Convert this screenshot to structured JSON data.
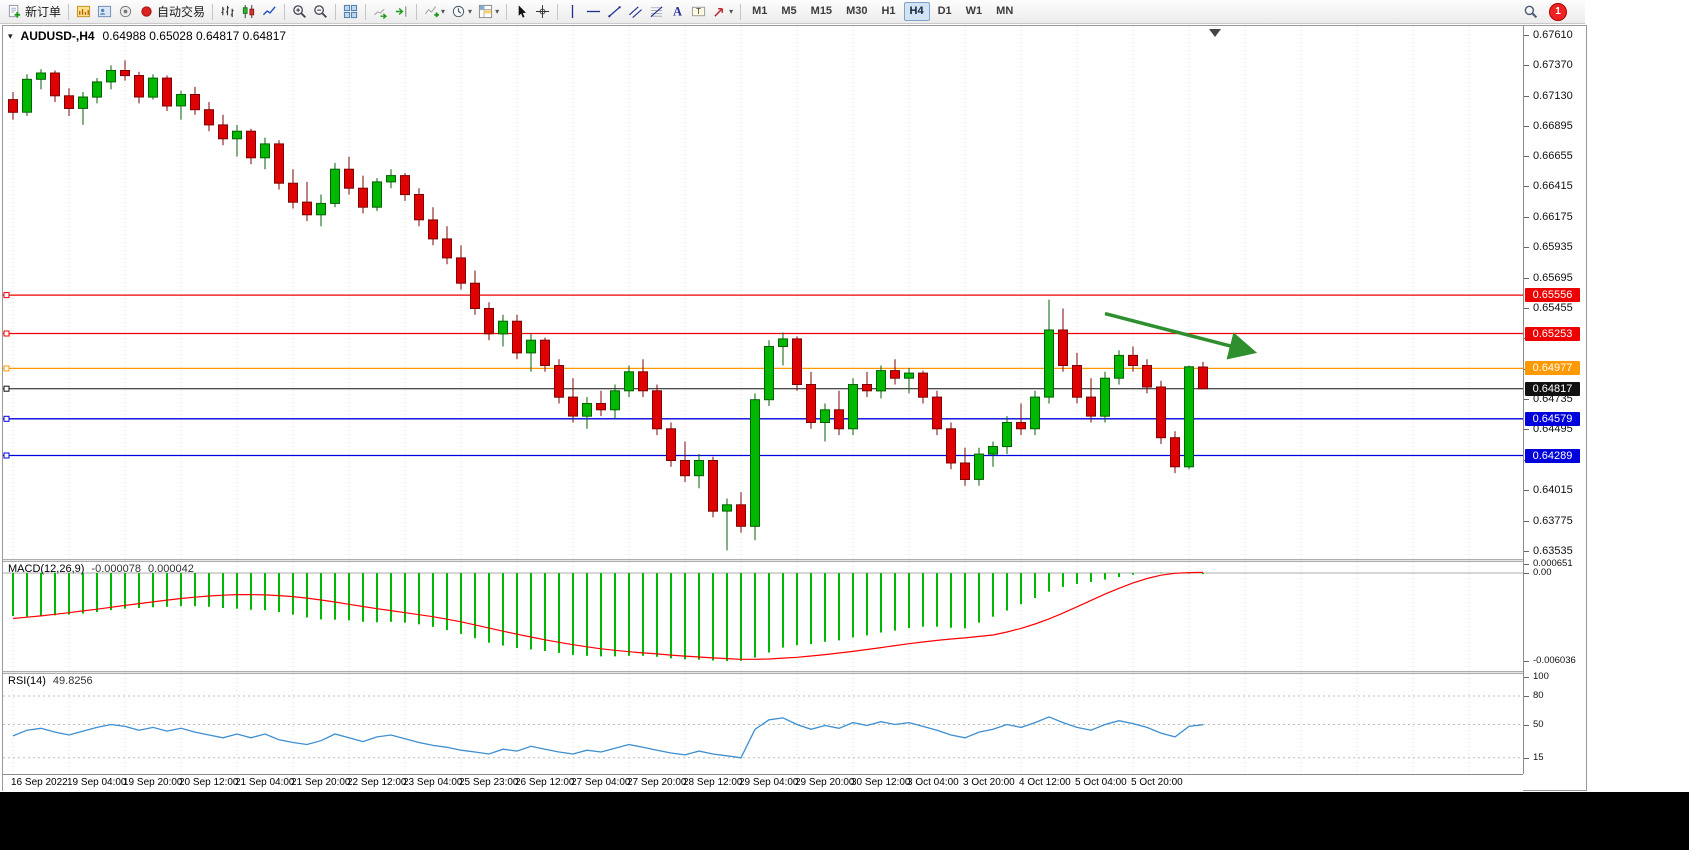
{
  "toolbar": {
    "notification_count": "1",
    "groups": [
      {
        "name": "orders",
        "items": [
          {
            "name": "new-order",
            "icon": "doc-new",
            "label": "新订单"
          }
        ]
      },
      {
        "name": "windows",
        "items": [
          {
            "name": "chart-windows",
            "icon": "chart-window"
          },
          {
            "name": "profiles",
            "icon": "profiles"
          },
          {
            "name": "news",
            "icon": "news"
          },
          {
            "name": "autotrading",
            "icon": "autotrading",
            "label": "自动交易"
          }
        ]
      },
      {
        "name": "chart-type",
        "items": [
          {
            "name": "bar-chart",
            "icon": "bars"
          },
          {
            "name": "candlestick-chart",
            "icon": "candles"
          },
          {
            "name": "line-chart",
            "icon": "linechart"
          }
        ]
      },
      {
        "name": "zoom",
        "items": [
          {
            "name": "zoom-in",
            "icon": "zoom-in"
          },
          {
            "name": "zoom-out",
            "icon": "zoom-out"
          }
        ]
      },
      {
        "name": "arrange",
        "items": [
          {
            "name": "tile-windows",
            "icon": "tile"
          }
        ]
      },
      {
        "name": "scroll",
        "items": [
          {
            "name": "auto-scroll",
            "icon": "auto-scroll"
          },
          {
            "name": "chart-shift",
            "icon": "chart-shift"
          }
        ]
      },
      {
        "name": "tools",
        "items": [
          {
            "name": "indicators",
            "icon": "indicator",
            "dropdown": true
          },
          {
            "name": "periods",
            "icon": "clock",
            "dropdown": true
          },
          {
            "name": "templates",
            "icon": "template",
            "dropdown": true
          }
        ]
      },
      {
        "name": "pointer",
        "items": [
          {
            "name": "cursor",
            "icon": "cursor"
          },
          {
            "name": "crosshair",
            "icon": "crosshair"
          }
        ]
      },
      {
        "name": "drawing",
        "items": [
          {
            "name": "vertical-line",
            "icon": "vline"
          },
          {
            "name": "horizontal-line",
            "icon": "hline"
          },
          {
            "name": "trend-line",
            "icon": "tline"
          },
          {
            "name": "equidistant-channel",
            "icon": "channel"
          },
          {
            "name": "fibonacci",
            "icon": "fibo"
          },
          {
            "name": "text",
            "icon": "text"
          },
          {
            "name": "text-label",
            "icon": "label"
          },
          {
            "name": "arrows",
            "icon": "arrowmark",
            "dropdown": true
          }
        ]
      }
    ],
    "timeframes": [
      "M1",
      "M5",
      "M15",
      "M30",
      "H1",
      "H4",
      "D1",
      "W1",
      "MN"
    ],
    "active_timeframe": "H4"
  },
  "chart_data": {
    "type": "candlestick",
    "symbol_period": "AUDUSD-,H4",
    "ohlc_display": "0.64988 0.65028 0.64817 0.64817",
    "open": "0.64988",
    "high": "0.65028",
    "low": "0.64817",
    "close": "0.64817",
    "price_max": 0.6761,
    "price_min": 0.63535,
    "price_axis_ticks": [
      "0.67610",
      "0.67370",
      "0.67130",
      "0.66895",
      "0.66655",
      "0.66415",
      "0.66175",
      "0.65935",
      "0.65695",
      "0.65455",
      "0.65215",
      "0.64975",
      "0.64735",
      "0.64495",
      "0.64255",
      "0.64015",
      "0.63775",
      "0.63535"
    ],
    "hlines": [
      {
        "price": 0.65556,
        "label": "0.65556",
        "color": "#ee0000",
        "type": "resistance"
      },
      {
        "price": 0.65253,
        "label": "0.65253",
        "color": "#ee0000",
        "type": "resistance"
      },
      {
        "price": 0.64977,
        "label": "0.64977",
        "color": "#ff9900",
        "type": "pivot"
      },
      {
        "price": 0.64817,
        "label": "0.64817",
        "color": "#111111",
        "type": "current-price"
      },
      {
        "price": 0.64579,
        "label": "0.64579",
        "color": "#0000dd",
        "type": "support"
      },
      {
        "price": 0.64289,
        "label": "0.64289",
        "color": "#0000dd",
        "type": "support"
      }
    ],
    "time_axis": [
      "16 Sep 2022",
      "19 Sep 04:00",
      "19 Sep 20:00",
      "20 Sep 12:00",
      "21 Sep 04:00",
      "21 Sep 20:00",
      "22 Sep 12:00",
      "23 Sep 04:00",
      "25 Sep 23:00",
      "26 Sep 12:00",
      "27 Sep 04:00",
      "27 Sep 20:00",
      "28 Sep 12:00",
      "29 Sep 04:00",
      "29 Sep 20:00",
      "30 Sep 12:00",
      "3 Oct 04:00",
      "3 Oct 20:00",
      "4 Oct 12:00",
      "5 Oct 04:00",
      "5 Oct 20:00"
    ],
    "up_color": "#00b800",
    "down_color": "#e00000",
    "candles": [
      [
        0.671,
        0.6716,
        0.6694,
        0.67
      ],
      [
        0.67,
        0.673,
        0.6697,
        0.6726
      ],
      [
        0.6726,
        0.6734,
        0.6718,
        0.6731
      ],
      [
        0.6731,
        0.6733,
        0.6708,
        0.6713
      ],
      [
        0.6713,
        0.6719,
        0.6697,
        0.6703
      ],
      [
        0.6703,
        0.6716,
        0.669,
        0.6712
      ],
      [
        0.6712,
        0.6727,
        0.6707,
        0.6724
      ],
      [
        0.6724,
        0.6737,
        0.6718,
        0.6733
      ],
      [
        0.6733,
        0.6741,
        0.6725,
        0.6729
      ],
      [
        0.6729,
        0.6732,
        0.6707,
        0.6712
      ],
      [
        0.6712,
        0.673,
        0.671,
        0.6727
      ],
      [
        0.6727,
        0.6729,
        0.6701,
        0.6705
      ],
      [
        0.6705,
        0.6717,
        0.6694,
        0.6714
      ],
      [
        0.6714,
        0.672,
        0.6698,
        0.6702
      ],
      [
        0.6702,
        0.6708,
        0.6685,
        0.669
      ],
      [
        0.669,
        0.6698,
        0.6674,
        0.6679
      ],
      [
        0.6679,
        0.669,
        0.6665,
        0.6685
      ],
      [
        0.6685,
        0.6687,
        0.6659,
        0.6664
      ],
      [
        0.6664,
        0.668,
        0.6655,
        0.6675
      ],
      [
        0.6675,
        0.6678,
        0.6639,
        0.6644
      ],
      [
        0.6644,
        0.6655,
        0.6624,
        0.6629
      ],
      [
        0.6629,
        0.6645,
        0.6614,
        0.6619
      ],
      [
        0.6619,
        0.6635,
        0.661,
        0.6628
      ],
      [
        0.6628,
        0.666,
        0.6625,
        0.6655
      ],
      [
        0.6655,
        0.6665,
        0.6635,
        0.664
      ],
      [
        0.664,
        0.665,
        0.662,
        0.6625
      ],
      [
        0.6625,
        0.6648,
        0.6622,
        0.6645
      ],
      [
        0.6645,
        0.6655,
        0.664,
        0.665
      ],
      [
        0.665,
        0.6652,
        0.663,
        0.6635
      ],
      [
        0.6635,
        0.664,
        0.661,
        0.6615
      ],
      [
        0.6615,
        0.6625,
        0.6595,
        0.66
      ],
      [
        0.66,
        0.661,
        0.658,
        0.6585
      ],
      [
        0.6585,
        0.6595,
        0.656,
        0.6565
      ],
      [
        0.6565,
        0.6575,
        0.654,
        0.6545
      ],
      [
        0.6545,
        0.655,
        0.652,
        0.6525
      ],
      [
        0.6525,
        0.654,
        0.6515,
        0.6535
      ],
      [
        0.6535,
        0.654,
        0.6505,
        0.651
      ],
      [
        0.651,
        0.6525,
        0.6495,
        0.652
      ],
      [
        0.652,
        0.6522,
        0.6495,
        0.65
      ],
      [
        0.65,
        0.6505,
        0.647,
        0.6475
      ],
      [
        0.6475,
        0.649,
        0.6455,
        0.646
      ],
      [
        0.646,
        0.6475,
        0.645,
        0.647
      ],
      [
        0.647,
        0.648,
        0.646,
        0.6465
      ],
      [
        0.6465,
        0.6485,
        0.6458,
        0.648
      ],
      [
        0.648,
        0.65,
        0.6475,
        0.6495
      ],
      [
        0.6495,
        0.6505,
        0.6475,
        0.648
      ],
      [
        0.648,
        0.6485,
        0.6445,
        0.645
      ],
      [
        0.645,
        0.6455,
        0.642,
        0.6425
      ],
      [
        0.6425,
        0.644,
        0.6408,
        0.6413
      ],
      [
        0.6413,
        0.643,
        0.6403,
        0.6425
      ],
      [
        0.6425,
        0.6428,
        0.638,
        0.6385
      ],
      [
        0.6385,
        0.6395,
        0.6354,
        0.639
      ],
      [
        0.639,
        0.64,
        0.6368,
        0.6373
      ],
      [
        0.6373,
        0.6478,
        0.6362,
        0.6473
      ],
      [
        0.6473,
        0.652,
        0.6468,
        0.6515
      ],
      [
        0.6515,
        0.6526,
        0.65,
        0.6521
      ],
      [
        0.6521,
        0.6523,
        0.648,
        0.6485
      ],
      [
        0.6485,
        0.6495,
        0.645,
        0.6455
      ],
      [
        0.6455,
        0.647,
        0.644,
        0.6465
      ],
      [
        0.6465,
        0.648,
        0.6445,
        0.645
      ],
      [
        0.645,
        0.649,
        0.6445,
        0.6485
      ],
      [
        0.6485,
        0.6495,
        0.6475,
        0.648
      ],
      [
        0.648,
        0.65,
        0.6474,
        0.6496
      ],
      [
        0.6496,
        0.6505,
        0.6485,
        0.649
      ],
      [
        0.649,
        0.6498,
        0.6478,
        0.6494
      ],
      [
        0.6494,
        0.6496,
        0.647,
        0.6475
      ],
      [
        0.6475,
        0.648,
        0.6445,
        0.645
      ],
      [
        0.645,
        0.6455,
        0.6418,
        0.6423
      ],
      [
        0.6423,
        0.6435,
        0.6405,
        0.641
      ],
      [
        0.641,
        0.6435,
        0.6405,
        0.643
      ],
      [
        0.643,
        0.644,
        0.642,
        0.6436
      ],
      [
        0.6436,
        0.646,
        0.643,
        0.6455
      ],
      [
        0.6455,
        0.647,
        0.6445,
        0.645
      ],
      [
        0.645,
        0.648,
        0.6445,
        0.6475
      ],
      [
        0.6475,
        0.6552,
        0.647,
        0.6528
      ],
      [
        0.6528,
        0.6545,
        0.6495,
        0.65
      ],
      [
        0.65,
        0.651,
        0.647,
        0.6475
      ],
      [
        0.6475,
        0.649,
        0.6455,
        0.646
      ],
      [
        0.646,
        0.6495,
        0.6455,
        0.649
      ],
      [
        0.649,
        0.6512,
        0.6485,
        0.6508
      ],
      [
        0.6508,
        0.6515,
        0.6495,
        0.65
      ],
      [
        0.65,
        0.6505,
        0.6478,
        0.6483
      ],
      [
        0.6483,
        0.6488,
        0.6438,
        0.6443
      ],
      [
        0.6443,
        0.6448,
        0.6415,
        0.642
      ],
      [
        0.642,
        0.65,
        0.6418,
        0.6499
      ],
      [
        0.64988,
        0.65028,
        0.64817,
        0.64817
      ]
    ],
    "annotation_arrow": {
      "from_index": 78,
      "from_price": 0.6541,
      "to_index": 88.5,
      "to_price": 0.6511,
      "color": "#2f8f2f"
    },
    "macd": {
      "label": "MACD(12,26,9)",
      "main_value": "-0.000078",
      "signal_value": "0.000042",
      "axis_labels": [
        "0.000651",
        "0.00",
        "-0.006036"
      ],
      "max": 0.000651,
      "min": -0.006036,
      "histogram_color": "#00b800",
      "signal_color": "#ff0000",
      "histogram": [
        -0.00295,
        -0.003,
        -0.00295,
        -0.0029,
        -0.00285,
        -0.00278,
        -0.00268,
        -0.00255,
        -0.00245,
        -0.0024,
        -0.00235,
        -0.00232,
        -0.00228,
        -0.00228,
        -0.00232,
        -0.0024,
        -0.00245,
        -0.00252,
        -0.00255,
        -0.00268,
        -0.00285,
        -0.00305,
        -0.00318,
        -0.0032,
        -0.00325,
        -0.00335,
        -0.00338,
        -0.00335,
        -0.0034,
        -0.00352,
        -0.0037,
        -0.00392,
        -0.00418,
        -0.00448,
        -0.00478,
        -0.00498,
        -0.00515,
        -0.00525,
        -0.00535,
        -0.00548,
        -0.00562,
        -0.00568,
        -0.00572,
        -0.00572,
        -0.00568,
        -0.00568,
        -0.00575,
        -0.00585,
        -0.00592,
        -0.00595,
        -0.006,
        -0.00604,
        -0.00602,
        -0.0058,
        -0.00545,
        -0.00512,
        -0.00495,
        -0.00488,
        -0.00472,
        -0.00462,
        -0.00442,
        -0.00428,
        -0.00408,
        -0.00395,
        -0.00378,
        -0.00368,
        -0.00368,
        -0.00375,
        -0.0038,
        -0.0034,
        -0.003,
        -0.00258,
        -0.00215,
        -0.00172,
        -0.00128,
        -0.00095,
        -0.00075,
        -0.00062,
        -0.00045,
        -0.00028,
        -0.00012,
        -2e-05,
        3e-05,
        -2e-05,
        -4e-05,
        -7.8e-05
      ],
      "signal": [
        -0.00312,
        -0.00303,
        -0.00294,
        -0.00283,
        -0.00272,
        -0.0026,
        -0.00248,
        -0.00235,
        -0.00222,
        -0.0021,
        -0.00198,
        -0.00186,
        -0.00175,
        -0.00166,
        -0.00158,
        -0.00152,
        -0.00148,
        -0.00148,
        -0.0015,
        -0.00155,
        -0.00162,
        -0.00172,
        -0.00185,
        -0.00199,
        -0.00215,
        -0.0023,
        -0.00245,
        -0.00258,
        -0.00272,
        -0.00286,
        -0.003,
        -0.00317,
        -0.00335,
        -0.00356,
        -0.00378,
        -0.00399,
        -0.0042,
        -0.00439,
        -0.00458,
        -0.00475,
        -0.00492,
        -0.00506,
        -0.0052,
        -0.0053,
        -0.0054,
        -0.00548,
        -0.00555,
        -0.00563,
        -0.0057,
        -0.00576,
        -0.00582,
        -0.00587,
        -0.00592,
        -0.00592,
        -0.0059,
        -0.00584,
        -0.00578,
        -0.00569,
        -0.0056,
        -0.00549,
        -0.00538,
        -0.00525,
        -0.00512,
        -0.00498,
        -0.00485,
        -0.00473,
        -0.00462,
        -0.00453,
        -0.00445,
        -0.00435,
        -0.00425,
        -0.00405,
        -0.0038,
        -0.0035,
        -0.00315,
        -0.00275,
        -0.00232,
        -0.00188,
        -0.00145,
        -0.00105,
        -0.00068,
        -0.00038,
        -0.00015,
        -2e-05,
        3e-05,
        4.2e-05
      ]
    },
    "rsi": {
      "label": "RSI(14)",
      "value": "49.8256",
      "color": "#3d8fd1",
      "axis_labels": [
        "100",
        "80",
        "50",
        "15"
      ],
      "levels": [
        80,
        50,
        15
      ],
      "series": [
        38,
        44,
        46,
        42,
        39,
        43,
        47,
        50,
        48,
        44,
        47,
        43,
        46,
        42,
        39,
        36,
        40,
        36,
        40,
        34,
        31,
        29,
        33,
        40,
        36,
        32,
        37,
        39,
        35,
        31,
        28,
        26,
        23,
        21,
        19,
        24,
        22,
        27,
        24,
        21,
        19,
        23,
        21,
        25,
        29,
        26,
        23,
        20,
        18,
        22,
        19,
        17,
        15,
        45,
        55,
        57,
        50,
        45,
        49,
        46,
        52,
        49,
        53,
        50,
        52,
        48,
        44,
        39,
        36,
        42,
        45,
        50,
        47,
        52,
        58,
        52,
        47,
        44,
        50,
        54,
        51,
        47,
        41,
        37,
        48,
        49.8256
      ]
    }
  }
}
